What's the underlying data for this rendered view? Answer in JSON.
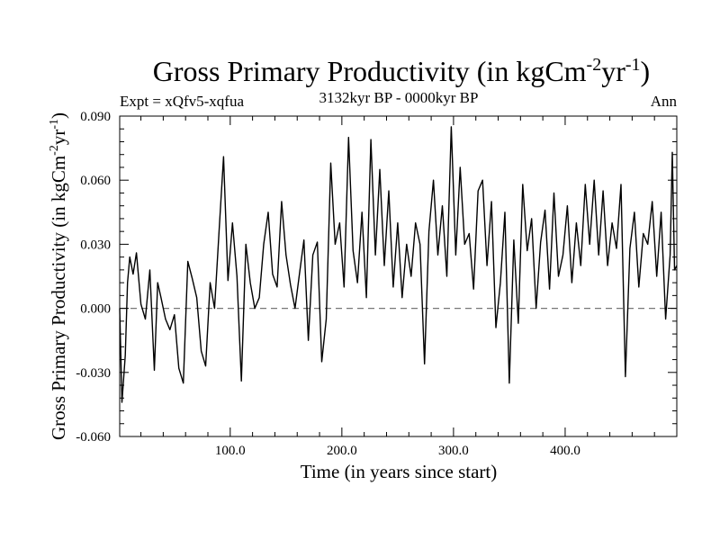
{
  "chart_data": {
    "type": "line",
    "title_main": "Gross Primary Productivity (in kgCm",
    "title_sup1": "-2",
    "title_mid": "yr",
    "title_sup2": "-1",
    "title_end": ")",
    "left_label": "Expt = xQfv5-xqfua",
    "center_label": "3132kyr BP - 0000kyr BP",
    "right_label": "Ann",
    "xlabel": "Time (in years since start)",
    "ylabel_main": "Gross Primary Productivity (in kgCm",
    "ylabel_sup1": "-2",
    "ylabel_mid": "yr",
    "ylabel_sup2": "-1",
    "ylabel_end": ")",
    "xlim": [
      1,
      500
    ],
    "ylim": [
      -0.06,
      0.09
    ],
    "xticks_major": [
      100,
      200,
      300,
      400
    ],
    "xtick_labels": [
      "100.0",
      "200.0",
      "300.0",
      "400.0"
    ],
    "yticks_major": [
      -0.06,
      -0.03,
      0.0,
      0.03,
      0.06,
      0.09
    ],
    "ytick_labels": [
      "-0.060",
      "-0.030",
      "0.000",
      "0.030",
      "0.060",
      "0.090"
    ],
    "reference_line": 0.0,
    "series": [
      {
        "name": "Ann",
        "points": [
          [
            1,
            0.0
          ],
          [
            3,
            -0.044
          ],
          [
            6,
            -0.022
          ],
          [
            8,
            0.012
          ],
          [
            10,
            0.024
          ],
          [
            13,
            0.016
          ],
          [
            16,
            0.026
          ],
          [
            20,
            0.002
          ],
          [
            24,
            -0.005
          ],
          [
            28,
            0.018
          ],
          [
            32,
            -0.029
          ],
          [
            35,
            0.012
          ],
          [
            38,
            0.005
          ],
          [
            42,
            -0.005
          ],
          [
            46,
            -0.01
          ],
          [
            50,
            -0.003
          ],
          [
            54,
            -0.028
          ],
          [
            58,
            -0.035
          ],
          [
            62,
            0.022
          ],
          [
            66,
            0.014
          ],
          [
            70,
            0.005
          ],
          [
            74,
            -0.02
          ],
          [
            78,
            -0.027
          ],
          [
            82,
            0.012
          ],
          [
            86,
            0.0
          ],
          [
            90,
            0.036
          ],
          [
            94,
            0.071
          ],
          [
            98,
            0.013
          ],
          [
            102,
            0.04
          ],
          [
            106,
            0.015
          ],
          [
            110,
            -0.034
          ],
          [
            114,
            0.03
          ],
          [
            118,
            0.012
          ],
          [
            122,
            0.0
          ],
          [
            126,
            0.005
          ],
          [
            130,
            0.03
          ],
          [
            134,
            0.045
          ],
          [
            138,
            0.016
          ],
          [
            142,
            0.01
          ],
          [
            146,
            0.05
          ],
          [
            150,
            0.025
          ],
          [
            154,
            0.011
          ],
          [
            158,
            0.0
          ],
          [
            162,
            0.016
          ],
          [
            166,
            0.032
          ],
          [
            170,
            -0.015
          ],
          [
            174,
            0.025
          ],
          [
            178,
            0.031
          ],
          [
            182,
            -0.025
          ],
          [
            186,
            -0.005
          ],
          [
            190,
            0.068
          ],
          [
            194,
            0.03
          ],
          [
            198,
            0.04
          ],
          [
            202,
            0.01
          ],
          [
            206,
            0.08
          ],
          [
            210,
            0.027
          ],
          [
            214,
            0.012
          ],
          [
            218,
            0.045
          ],
          [
            222,
            0.005
          ],
          [
            226,
            0.079
          ],
          [
            230,
            0.025
          ],
          [
            234,
            0.065
          ],
          [
            238,
            0.02
          ],
          [
            242,
            0.055
          ],
          [
            246,
            0.01
          ],
          [
            250,
            0.04
          ],
          [
            254,
            0.005
          ],
          [
            258,
            0.03
          ],
          [
            262,
            0.015
          ],
          [
            266,
            0.04
          ],
          [
            270,
            0.03
          ],
          [
            274,
            -0.026
          ],
          [
            278,
            0.036
          ],
          [
            282,
            0.06
          ],
          [
            286,
            0.025
          ],
          [
            290,
            0.048
          ],
          [
            294,
            0.015
          ],
          [
            298,
            0.085
          ],
          [
            302,
            0.025
          ],
          [
            306,
            0.066
          ],
          [
            310,
            0.03
          ],
          [
            314,
            0.035
          ],
          [
            318,
            0.009
          ],
          [
            322,
            0.055
          ],
          [
            326,
            0.06
          ],
          [
            330,
            0.02
          ],
          [
            334,
            0.05
          ],
          [
            338,
            -0.009
          ],
          [
            342,
            0.012
          ],
          [
            346,
            0.045
          ],
          [
            350,
            -0.035
          ],
          [
            354,
            0.032
          ],
          [
            358,
            -0.007
          ],
          [
            362,
            0.058
          ],
          [
            366,
            0.027
          ],
          [
            370,
            0.042
          ],
          [
            374,
            0.0
          ],
          [
            378,
            0.031
          ],
          [
            382,
            0.046
          ],
          [
            386,
            0.009
          ],
          [
            390,
            0.054
          ],
          [
            394,
            0.015
          ],
          [
            398,
            0.025
          ],
          [
            402,
            0.048
          ],
          [
            406,
            0.012
          ],
          [
            410,
            0.04
          ],
          [
            414,
            0.02
          ],
          [
            418,
            0.058
          ],
          [
            422,
            0.03
          ],
          [
            426,
            0.06
          ],
          [
            430,
            0.025
          ],
          [
            434,
            0.055
          ],
          [
            438,
            0.02
          ],
          [
            442,
            0.04
          ],
          [
            446,
            0.028
          ],
          [
            450,
            0.058
          ],
          [
            454,
            -0.032
          ],
          [
            458,
            0.028
          ],
          [
            462,
            0.045
          ],
          [
            466,
            0.01
          ],
          [
            470,
            0.035
          ],
          [
            474,
            0.03
          ],
          [
            478,
            0.05
          ],
          [
            482,
            0.015
          ],
          [
            486,
            0.045
          ],
          [
            490,
            -0.005
          ],
          [
            494,
            0.025
          ],
          [
            496,
            0.073
          ],
          [
            498,
            0.018
          ],
          [
            500,
            0.02
          ]
        ]
      }
    ]
  }
}
